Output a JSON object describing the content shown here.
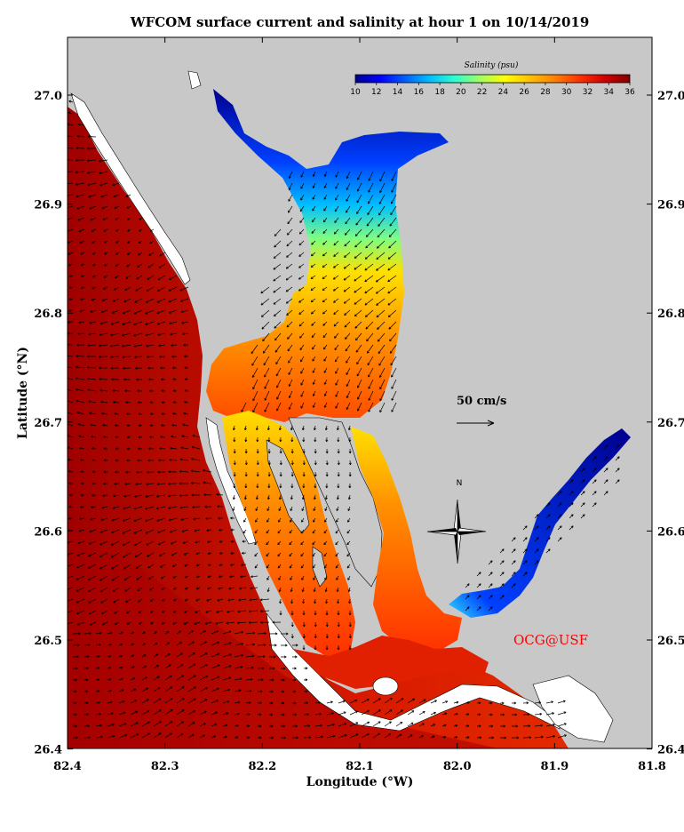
{
  "title": "WFCOM surface current and salinity at hour 1 on 10/14/2019",
  "x_axis": {
    "label": "Longitude (°W)",
    "ticks": [
      "82.4",
      "82.3",
      "82.2",
      "82.1",
      "82.0",
      "81.9",
      "81.8"
    ]
  },
  "y_axis": {
    "label": "Latitude (°N)",
    "ticks": [
      "27.0",
      "26.9",
      "26.8",
      "26.7",
      "26.6",
      "26.5",
      "26.4"
    ]
  },
  "colorbar": {
    "title": "Salinity (psu)",
    "ticks": [
      "10",
      "12",
      "14",
      "16",
      "18",
      "20",
      "22",
      "24",
      "26",
      "28",
      "30",
      "32",
      "34",
      "36"
    ],
    "colors": [
      "#00008f",
      "#0000ff",
      "#0060ff",
      "#00c0ff",
      "#30ffcf",
      "#a0ff60",
      "#ffff00",
      "#ffc000",
      "#ff8000",
      "#ff3000",
      "#d00000",
      "#800000"
    ]
  },
  "scale_vector": {
    "label": "50 cm/s"
  },
  "compass": {
    "north_label": "N"
  },
  "credit": "OCG@USF",
  "colors": {
    "land": "#c8c8c8",
    "gulf": "#cc1000",
    "deep_gulf": "#aa0000",
    "background": "#ffffff"
  }
}
